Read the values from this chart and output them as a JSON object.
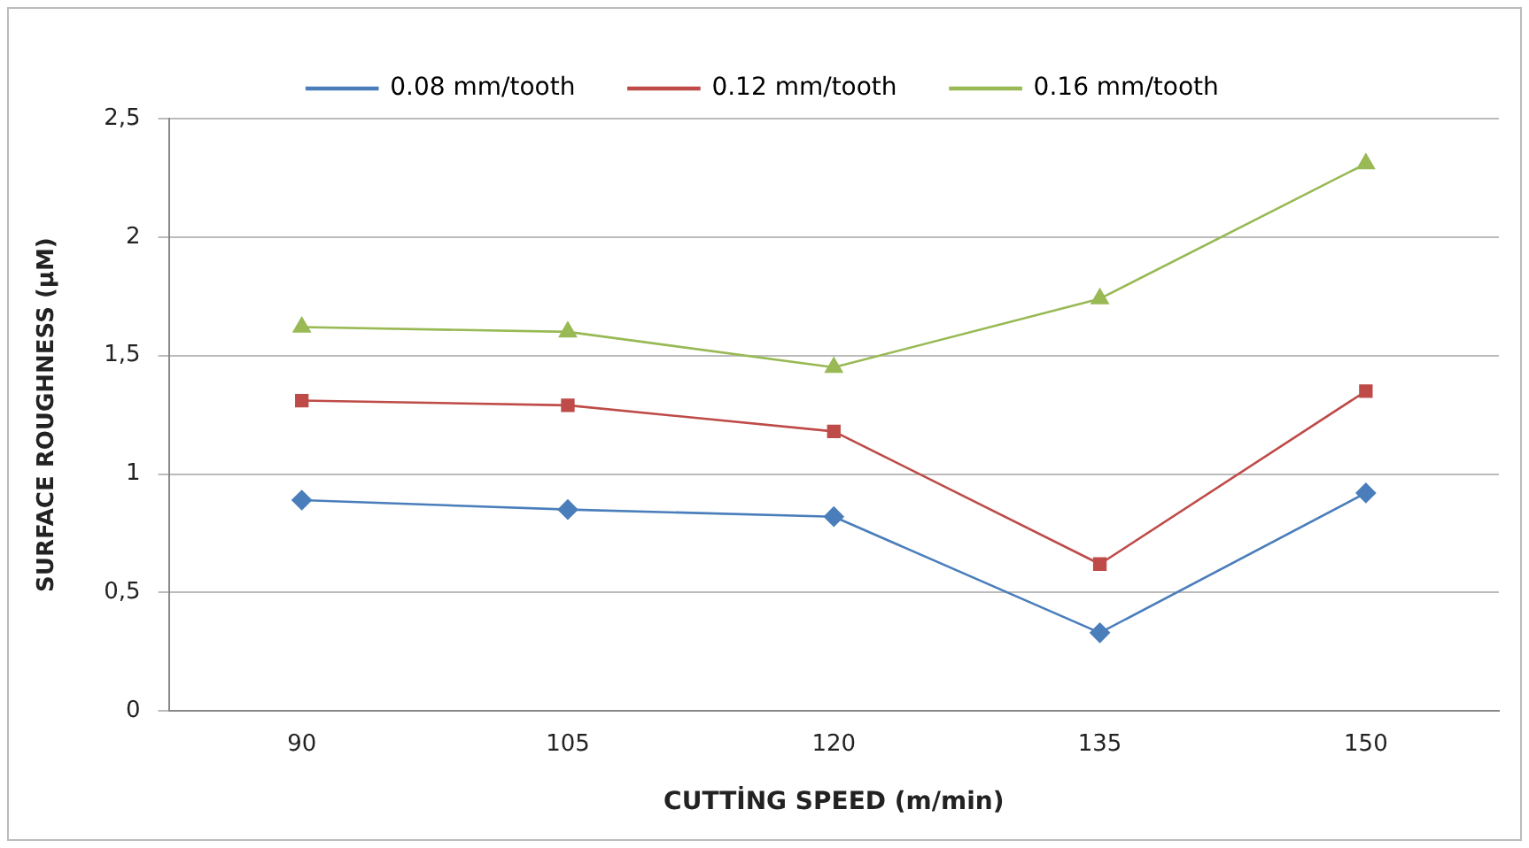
{
  "chart_data": {
    "type": "line",
    "xlabel": "CUTTİNG SPEED (m/min)",
    "ylabel": "SURFACE ROUGHNESS (μM)",
    "categories": [
      "90",
      "105",
      "120",
      "135",
      "150"
    ],
    "series": [
      {
        "name": "0.08 mm/tooth",
        "color": "#4a7ebb",
        "marker": "diamond",
        "values": [
          0.89,
          0.85,
          0.82,
          0.33,
          0.92
        ]
      },
      {
        "name": "0.12 mm/tooth",
        "color": "#be4b48",
        "marker": "square",
        "values": [
          1.31,
          1.29,
          1.18,
          0.62,
          1.35
        ]
      },
      {
        "name": "0.16 mm/tooth",
        "color": "#98b954",
        "marker": "triangle",
        "values": [
          1.62,
          1.6,
          1.45,
          1.74,
          2.31
        ]
      }
    ],
    "ylim": [
      0,
      2.5
    ],
    "yticks": [
      0,
      {
        "value": 0.5,
        "label": "0,5"
      },
      1,
      {
        "value": 1.5,
        "label": "1,5"
      },
      2,
      {
        "value": 2.5,
        "label": "2,5"
      }
    ],
    "grid": "y",
    "legend": "top"
  }
}
